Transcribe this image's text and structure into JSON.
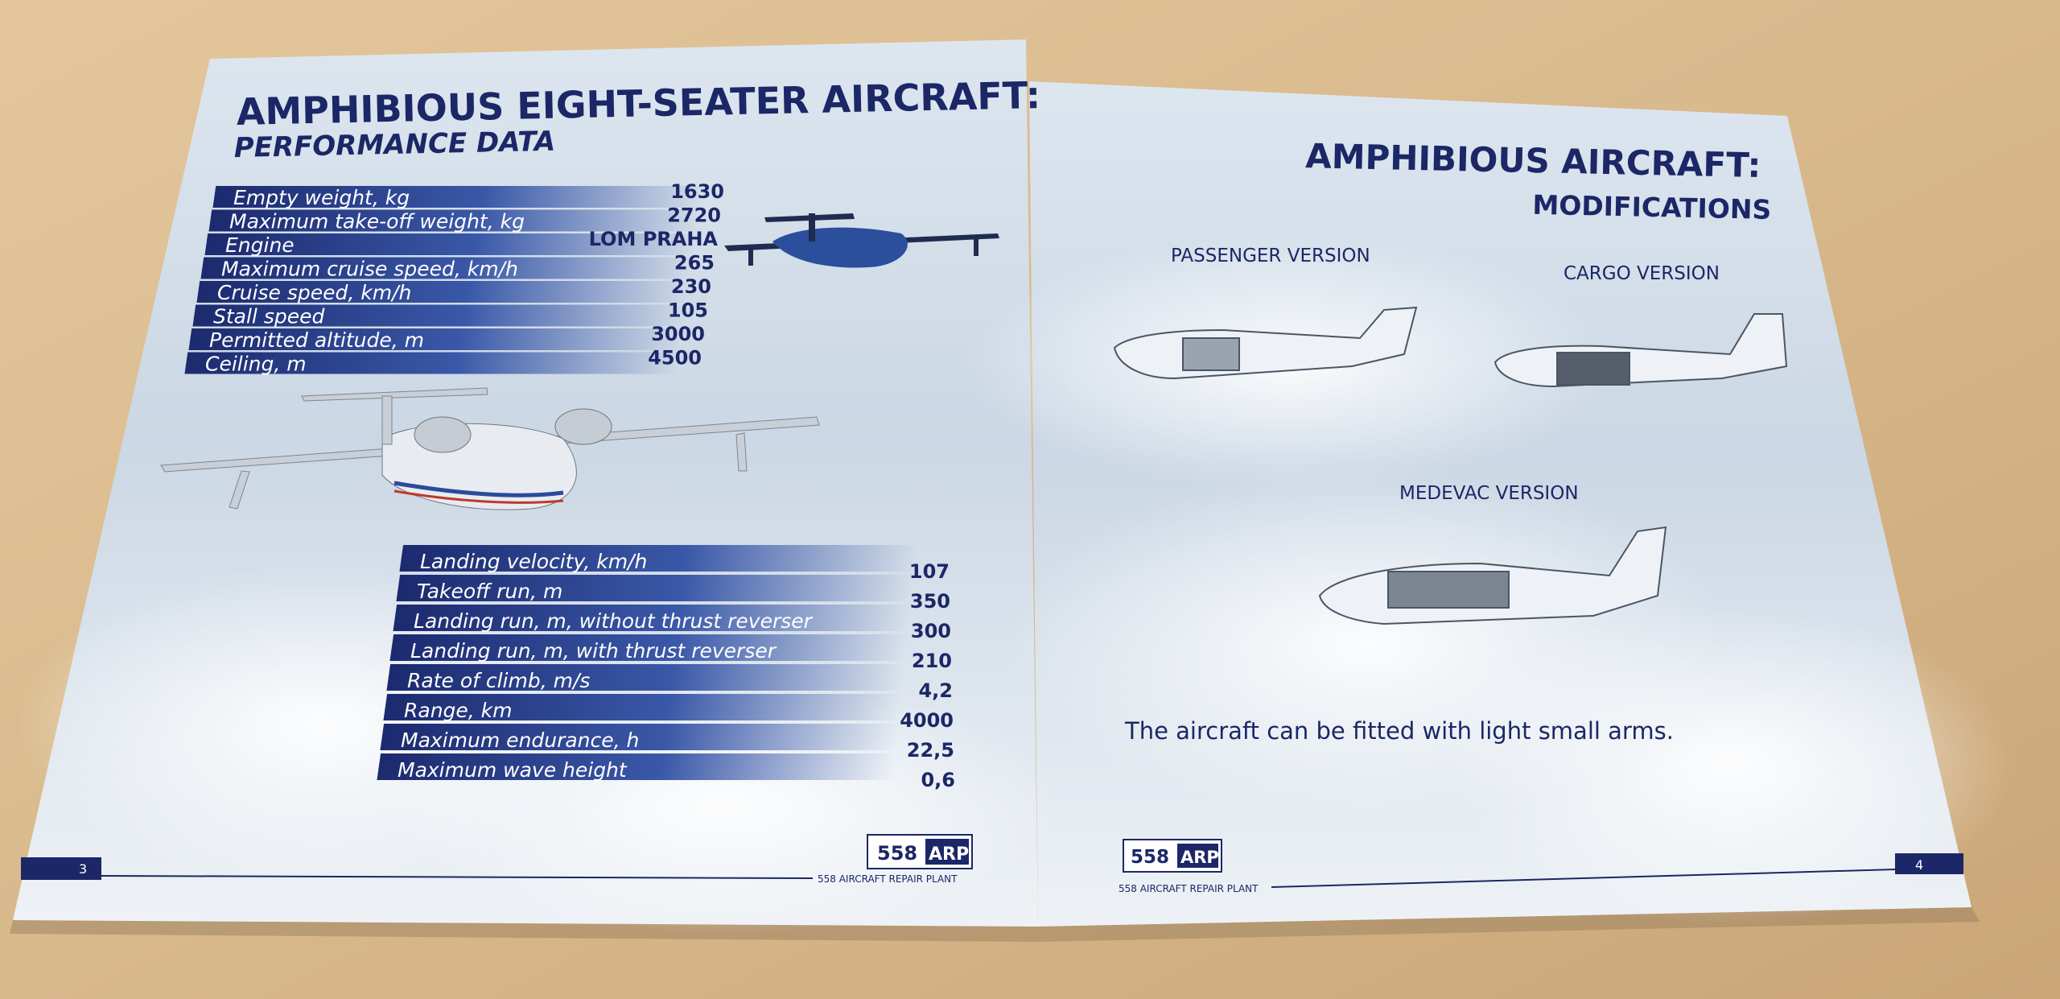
{
  "left_page": {
    "title": "AMPHIBIOUS EIGHT-SEATER AIRCRAFT:",
    "subtitle": "PERFORMANCE DATA",
    "table_top": {
      "rows": [
        [
          "Empty weight, kg",
          "1630"
        ],
        [
          "Maximum take-off weight, kg",
          "2720"
        ],
        [
          "Engine",
          "LOM PRAHA"
        ],
        [
          "Maximum cruise speed, km/h",
          "265"
        ],
        [
          "Cruise speed, km/h",
          "230"
        ],
        [
          "Stall speed",
          "105"
        ],
        [
          "Permitted altitude, m",
          "3000"
        ],
        [
          "Ceiling, m",
          "4500"
        ]
      ]
    },
    "table_bottom": {
      "rows": [
        [
          "Landing velocity, km/h",
          "107"
        ],
        [
          "Takeoff run, m",
          "350"
        ],
        [
          "Landing run, m, without thrust reverser",
          "300"
        ],
        [
          "Landing run, m, with thrust reverser",
          "210"
        ],
        [
          "Rate of climb, m/s",
          "4,2"
        ],
        [
          "Range, km",
          "4000"
        ],
        [
          "Maximum endurance, h",
          "22,5"
        ],
        [
          "Maximum wave height",
          "0,6"
        ]
      ]
    },
    "page_number": "3",
    "logo": {
      "number": "558",
      "text": "ARP"
    },
    "footer": "558 AIRCRAFT REPAIR PLANT"
  },
  "right_page": {
    "title": "AMPHIBIOUS AIRCRAFT:",
    "subtitle": "MODIFICATIONS",
    "versions": [
      "PASSENGER VERSION",
      "CARGO VERSION",
      "MEDEVAC VERSION"
    ],
    "note": "The aircraft can be fitted with light small arms.",
    "page_number": "4",
    "logo": {
      "number": "558",
      "text": "ARP"
    },
    "footer": "558 AIRCRAFT REPAIR PLANT"
  }
}
